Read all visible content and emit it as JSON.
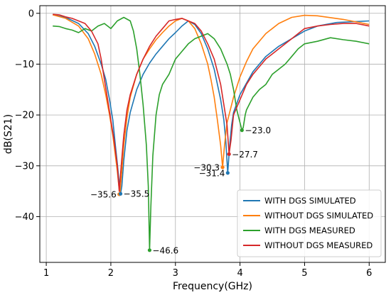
{
  "chart_data": {
    "type": "line",
    "title": "",
    "xlabel": "Frequency(GHz)",
    "ylabel": "dB(S21)",
    "xlim": [
      0.9,
      6.25
    ],
    "ylim": [
      -49,
      1.5
    ],
    "xticks": [
      1,
      2,
      3,
      4,
      5,
      6
    ],
    "yticks": [
      0,
      -10,
      -20,
      -30,
      -40
    ],
    "grid": true,
    "legend_position": "lower-right",
    "series": [
      {
        "name": "WITH DGS SIMULATED",
        "color": "#1f77b4",
        "x": [
          1.1,
          1.3,
          1.5,
          1.65,
          1.75,
          1.85,
          1.92,
          1.98,
          2.03,
          2.07,
          2.1,
          2.13,
          2.15,
          2.17,
          2.2,
          2.25,
          2.3,
          2.4,
          2.5,
          2.6,
          2.7,
          2.8,
          2.9,
          3.0,
          3.1,
          3.2,
          3.3,
          3.4,
          3.5,
          3.6,
          3.7,
          3.75,
          3.78,
          3.81,
          3.84,
          3.87,
          3.9,
          4.0,
          4.2,
          4.4,
          4.6,
          4.8,
          5.0,
          5.2,
          5.5,
          6.0
        ],
        "y": [
          -0.3,
          -0.8,
          -2.0,
          -4.0,
          -6.5,
          -10.0,
          -13.0,
          -17.0,
          -21.0,
          -26.0,
          -29.5,
          -33.5,
          -35.5,
          -34.0,
          -29.0,
          -23.0,
          -19.5,
          -15.0,
          -12.0,
          -9.8,
          -8.0,
          -6.5,
          -5.0,
          -3.8,
          -2.5,
          -1.5,
          -2.2,
          -4.0,
          -7.0,
          -11.0,
          -17.0,
          -21.0,
          -25.0,
          -31.4,
          -26.0,
          -22.0,
          -19.5,
          -16.0,
          -11.5,
          -8.5,
          -6.5,
          -5.0,
          -3.5,
          -2.5,
          -1.8,
          -1.5
        ]
      },
      {
        "name": "WITHOUT DGS SIMULATED",
        "color": "#ff7f0e",
        "x": [
          1.1,
          1.3,
          1.5,
          1.65,
          1.75,
          1.85,
          1.92,
          1.98,
          2.03,
          2.07,
          2.1,
          2.12,
          2.14,
          2.17,
          2.2,
          2.25,
          2.3,
          2.4,
          2.5,
          2.6,
          2.7,
          2.8,
          2.9,
          3.0,
          3.1,
          3.2,
          3.3,
          3.4,
          3.5,
          3.55,
          3.6,
          3.65,
          3.7,
          3.73,
          3.76,
          3.8,
          3.9,
          4.0,
          4.1,
          4.2,
          4.4,
          4.6,
          4.8,
          5.0,
          5.2,
          5.6,
          6.0
        ],
        "y": [
          -0.3,
          -1.0,
          -2.5,
          -5.0,
          -8.0,
          -12.0,
          -16.0,
          -20.0,
          -24.0,
          -28.0,
          -31.0,
          -33.5,
          -35.6,
          -31.0,
          -26.0,
          -20.5,
          -16.5,
          -12.0,
          -9.0,
          -7.0,
          -5.2,
          -3.8,
          -2.5,
          -1.5,
          -1.0,
          -1.5,
          -3.0,
          -6.0,
          -10.0,
          -13.0,
          -16.5,
          -21.0,
          -26.0,
          -30.3,
          -26.0,
          -21.5,
          -16.5,
          -12.5,
          -9.5,
          -7.0,
          -4.0,
          -2.0,
          -0.8,
          -0.4,
          -0.5,
          -1.2,
          -2.2
        ]
      },
      {
        "name": "WITH DGS MEASURED",
        "color": "#2ca02c",
        "x": [
          1.1,
          1.2,
          1.3,
          1.4,
          1.5,
          1.6,
          1.7,
          1.8,
          1.9,
          2.0,
          2.1,
          2.2,
          2.3,
          2.35,
          2.4,
          2.45,
          2.5,
          2.55,
          2.58,
          2.6,
          2.62,
          2.65,
          2.7,
          2.75,
          2.8,
          2.9,
          3.0,
          3.1,
          3.2,
          3.3,
          3.4,
          3.5,
          3.6,
          3.7,
          3.8,
          3.85,
          3.9,
          3.95,
          4.0,
          4.03,
          4.05,
          4.08,
          4.1,
          4.2,
          4.3,
          4.4,
          4.5,
          4.6,
          4.7,
          4.8,
          4.9,
          5.0,
          5.2,
          5.4,
          5.6,
          5.8,
          6.0
        ],
        "y": [
          -2.5,
          -2.6,
          -3.0,
          -3.3,
          -3.8,
          -3.0,
          -3.5,
          -2.5,
          -2.0,
          -3.0,
          -1.5,
          -0.8,
          -1.5,
          -3.5,
          -7.0,
          -12.0,
          -18.0,
          -26.0,
          -34.0,
          -46.6,
          -38.0,
          -28.0,
          -20.0,
          -16.0,
          -14.0,
          -12.0,
          -9.0,
          -7.5,
          -6.0,
          -5.0,
          -4.5,
          -4.0,
          -5.0,
          -7.0,
          -10.0,
          -12.0,
          -15.0,
          -19.0,
          -21.5,
          -23.0,
          -22.5,
          -20.0,
          -19.0,
          -16.5,
          -15.0,
          -14.0,
          -12.0,
          -11.0,
          -10.0,
          -8.5,
          -7.0,
          -6.0,
          -5.5,
          -4.8,
          -5.2,
          -5.5,
          -6.0
        ]
      },
      {
        "name": "WITHOUT DGS MEASURED",
        "color": "#d62728",
        "x": [
          1.1,
          1.2,
          1.3,
          1.4,
          1.5,
          1.6,
          1.7,
          1.8,
          1.85,
          1.9,
          1.95,
          2.0,
          2.05,
          2.1,
          2.13,
          2.16,
          2.2,
          2.25,
          2.3,
          2.4,
          2.5,
          2.6,
          2.7,
          2.8,
          2.9,
          3.0,
          3.1,
          3.2,
          3.3,
          3.4,
          3.5,
          3.6,
          3.7,
          3.75,
          3.8,
          3.83,
          3.86,
          3.9,
          4.0,
          4.1,
          4.2,
          4.3,
          4.4,
          4.5,
          4.6,
          4.7,
          4.8,
          4.9,
          5.0,
          5.2,
          5.4,
          5.6,
          5.8,
          6.0
        ],
        "y": [
          -0.2,
          -0.3,
          -0.7,
          -1.0,
          -1.5,
          -2.0,
          -3.5,
          -6.0,
          -9.0,
          -13.0,
          -17.0,
          -21.0,
          -25.0,
          -30.0,
          -35.0,
          -30.0,
          -24.0,
          -19.0,
          -16.0,
          -12.0,
          -9.0,
          -6.5,
          -4.5,
          -3.0,
          -1.5,
          -1.2,
          -1.0,
          -1.5,
          -2.0,
          -3.5,
          -6.0,
          -9.0,
          -14.0,
          -18.0,
          -22.0,
          -27.7,
          -25.0,
          -20.0,
          -17.0,
          -14.0,
          -12.0,
          -10.5,
          -9.0,
          -8.0,
          -7.0,
          -6.0,
          -5.0,
          -4.0,
          -3.0,
          -2.5,
          -2.2,
          -2.0,
          -2.0,
          -2.5
        ]
      }
    ],
    "annotations": [
      {
        "text": "−35.6",
        "x": 2.13,
        "y": -35.6,
        "color": "#ff7f0e",
        "side": "left"
      },
      {
        "text": "−35.5",
        "x": 2.15,
        "y": -35.5,
        "color": "#1f77b4",
        "side": "right"
      },
      {
        "text": "−46.6",
        "x": 2.6,
        "y": -46.6,
        "color": "#2ca02c",
        "side": "right"
      },
      {
        "text": "−30.3",
        "x": 3.73,
        "y": -30.3,
        "color": "#ff7f0e",
        "side": "left"
      },
      {
        "text": "−31.4",
        "x": 3.81,
        "y": -31.4,
        "color": "#1f77b4",
        "side": "left"
      },
      {
        "text": "−27.7",
        "x": 3.83,
        "y": -27.7,
        "color": "#d62728",
        "side": "right"
      },
      {
        "text": "−23.0",
        "x": 4.03,
        "y": -23.0,
        "color": "#2ca02c",
        "side": "right"
      }
    ]
  }
}
